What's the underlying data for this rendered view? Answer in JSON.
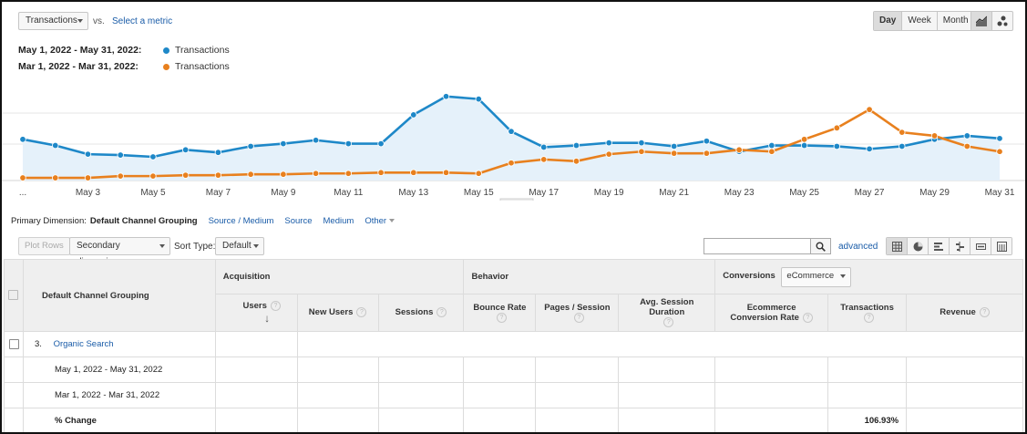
{
  "controls": {
    "metric_select": "Transactions",
    "vs_label": "vs.",
    "select_metric_link": "Select a metric",
    "period_buttons": [
      "Day",
      "Week",
      "Month"
    ],
    "active_period": "Day"
  },
  "legend": [
    {
      "range": "May 1, 2022 - May 31, 2022:",
      "label": "Transactions",
      "color": "#1e88c8"
    },
    {
      "range": "Mar 1, 2022 - Mar 31, 2022:",
      "label": "Transactions",
      "color": "#e8801e"
    }
  ],
  "chart_data": {
    "type": "line",
    "x_tick_labels": [
      "...",
      "May 3",
      "May 5",
      "May 7",
      "May 9",
      "May 11",
      "May 13",
      "May 15",
      "May 17",
      "May 19",
      "May 21",
      "May 23",
      "May 25",
      "May 27",
      "May 29",
      "May 31"
    ],
    "x": [
      1,
      2,
      3,
      4,
      5,
      6,
      7,
      8,
      9,
      10,
      11,
      12,
      13,
      14,
      15,
      16,
      17,
      18,
      19,
      20,
      21,
      22,
      23,
      24,
      25,
      26,
      27,
      28,
      29,
      30,
      31
    ],
    "ylim": [
      0,
      1
    ],
    "grid": true,
    "series": [
      {
        "name": "Transactions",
        "range": "May 1, 2022 - May 31, 2022",
        "color": "#1e88c8",
        "filled": true,
        "values": [
          0.45,
          0.38,
          0.28,
          0.27,
          0.25,
          0.33,
          0.3,
          0.37,
          0.4,
          0.44,
          0.4,
          0.4,
          0.73,
          0.94,
          0.91,
          0.54,
          0.36,
          0.38,
          0.41,
          0.41,
          0.37,
          0.43,
          0.31,
          0.38,
          0.38,
          0.37,
          0.34,
          0.37,
          0.45,
          0.49,
          0.46
        ]
      },
      {
        "name": "Transactions",
        "range": "Mar 1, 2022 - Mar 31, 2022",
        "color": "#e8801e",
        "filled": false,
        "values": [
          0.01,
          0.01,
          0.01,
          0.03,
          0.03,
          0.04,
          0.04,
          0.05,
          0.05,
          0.06,
          0.06,
          0.07,
          0.07,
          0.07,
          0.06,
          0.18,
          0.22,
          0.2,
          0.28,
          0.31,
          0.29,
          0.29,
          0.33,
          0.31,
          0.45,
          0.58,
          0.79,
          0.53,
          0.49,
          0.37,
          0.31
        ]
      }
    ]
  },
  "dimensions": {
    "prefix": "Primary Dimension:",
    "current": "Default Channel Grouping",
    "options": [
      "Source / Medium",
      "Source",
      "Medium"
    ],
    "other": "Other"
  },
  "toolbar": {
    "plot_rows": "Plot Rows",
    "secondary_dimension": "Secondary dimension",
    "sort_type_label": "Sort Type:",
    "sort_type_value": "Default",
    "search_value": "",
    "advanced": "advanced"
  },
  "table": {
    "dimension_header": "Default Channel Grouping",
    "groups": {
      "acquisition": "Acquisition",
      "behavior": "Behavior",
      "conversions": "Conversions",
      "conversions_select": "eCommerce"
    },
    "metrics": [
      "Users",
      "New Users",
      "Sessions",
      "Bounce Rate",
      "Pages / Session",
      "Avg. Session Duration",
      "Ecommerce Conversion Rate",
      "Transactions",
      "Revenue"
    ],
    "help_glyph": "?",
    "row_index": "3.",
    "row_label": "Organic Search",
    "sub_rows": [
      "May 1, 2022 - May 31, 2022",
      "Mar 1, 2022 - Mar 31, 2022"
    ],
    "change_label": "% Change",
    "transactions_change": "106.93%"
  }
}
